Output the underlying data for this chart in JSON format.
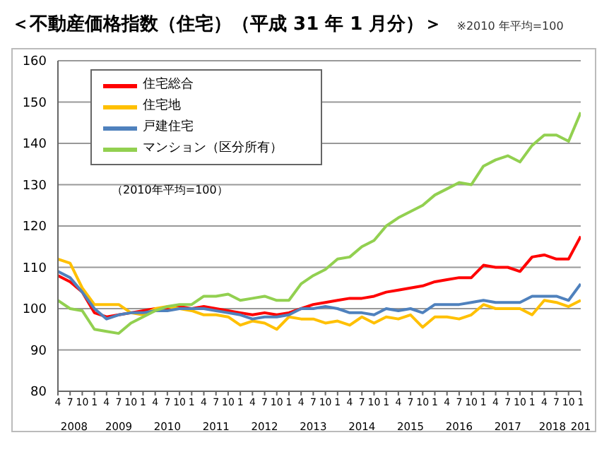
{
  "chart_data": {
    "type": "line",
    "title": "＜不動産価格指数（住宅）（平成 31 年 1 月分）＞",
    "annotations": [
      "※2010 年平均=100",
      "（2010年平均=100）"
    ],
    "x": [
      "2008-04",
      "2008-07",
      "2008-10",
      "2009-01",
      "2009-04",
      "2009-07",
      "2009-10",
      "2010-01",
      "2010-04",
      "2010-07",
      "2010-10",
      "2011-01",
      "2011-04",
      "2011-07",
      "2011-10",
      "2012-01",
      "2012-04",
      "2012-07",
      "2012-10",
      "2013-01",
      "2013-04",
      "2013-07",
      "2013-10",
      "2014-01",
      "2014-04",
      "2014-07",
      "2014-10",
      "2015-01",
      "2015-04",
      "2015-07",
      "2015-10",
      "2016-01",
      "2016-04",
      "2016-07",
      "2016-10",
      "2017-01",
      "2017-04",
      "2017-07",
      "2017-10",
      "2018-01",
      "2018-04",
      "2018-07",
      "2018-10",
      "2019-01"
    ],
    "series": [
      {
        "name": "住宅総合",
        "color": "#ff0000",
        "values": [
          108,
          106.5,
          104,
          99,
          98,
          98.5,
          99,
          99.5,
          100,
          100,
          100.5,
          100,
          100.5,
          100,
          99.5,
          99,
          98.5,
          99,
          98.5,
          99,
          100,
          101,
          101.5,
          102,
          102.5,
          102.5,
          103,
          104,
          104.5,
          105,
          105.5,
          106.5,
          107,
          107.5,
          107.5,
          110.5,
          110,
          110,
          109,
          112.5,
          113,
          112,
          112,
          117.5
        ]
      },
      {
        "name": "住宅地",
        "color": "#ffc000",
        "values": [
          112,
          111,
          105,
          101,
          101,
          101,
          99,
          98.5,
          100,
          100.5,
          100,
          99.5,
          98.5,
          98.5,
          98,
          96,
          97,
          96.5,
          95,
          98,
          97.5,
          97.5,
          96.5,
          97,
          96,
          98,
          96.5,
          98,
          97.5,
          98.5,
          95.5,
          98,
          98,
          97.5,
          98.5,
          101,
          100,
          100,
          100,
          98.5,
          102,
          101.5,
          100.5,
          102
        ]
      },
      {
        "name": "戸建住宅",
        "color": "#4f81bd",
        "values": [
          109,
          107.5,
          104,
          100,
          97.5,
          98.5,
          99,
          99,
          99.5,
          99.5,
          100,
          100,
          100,
          99.5,
          99,
          98.5,
          97.5,
          98,
          98,
          98.5,
          100,
          100,
          100.5,
          100,
          99,
          99,
          98.5,
          100,
          99.5,
          100,
          99,
          101,
          101,
          101,
          101.5,
          102,
          101.5,
          101.5,
          101.5,
          103,
          103,
          103,
          102,
          106
        ]
      },
      {
        "name": "マンション（区分所有）",
        "color": "#92d050",
        "values": [
          102,
          100,
          99.5,
          95,
          94.5,
          94,
          96.5,
          98,
          99.5,
          100.5,
          101,
          101,
          103,
          103,
          103.5,
          102,
          102.5,
          103,
          102,
          102,
          106,
          108,
          109.5,
          112,
          112.5,
          115,
          116.5,
          120,
          122,
          123.5,
          125,
          127.5,
          129,
          130.5,
          130,
          134.5,
          136,
          137,
          135.5,
          139.5,
          142,
          142,
          140.5,
          147.5
        ]
      }
    ],
    "xlim": [
      "2008-04",
      "2019-01"
    ],
    "xticks": [
      {
        "value": "2008-04",
        "label": "4"
      },
      {
        "value": "2008-07",
        "label": "7"
      },
      {
        "value": "2008-10",
        "label": "10"
      },
      {
        "value": "2009-01",
        "label": "1"
      },
      {
        "value": "2009-04",
        "label": "4"
      },
      {
        "value": "2009-07",
        "label": "7"
      },
      {
        "value": "2009-10",
        "label": "10"
      },
      {
        "value": "2010-01",
        "label": "1"
      },
      {
        "value": "2010-04",
        "label": "4"
      },
      {
        "value": "2010-07",
        "label": "7"
      },
      {
        "value": "2010-10",
        "label": "10"
      },
      {
        "value": "2011-01",
        "label": "1"
      },
      {
        "value": "2011-04",
        "label": "4"
      },
      {
        "value": "2011-07",
        "label": "7"
      },
      {
        "value": "2011-10",
        "label": "10"
      },
      {
        "value": "2012-01",
        "label": "1"
      },
      {
        "value": "2012-04",
        "label": "4"
      },
      {
        "value": "2012-07",
        "label": "7"
      },
      {
        "value": "2012-10",
        "label": "10"
      },
      {
        "value": "2013-01",
        "label": "1"
      },
      {
        "value": "2013-04",
        "label": "4"
      },
      {
        "value": "2013-07",
        "label": "7"
      },
      {
        "value": "2013-10",
        "label": "10"
      },
      {
        "value": "2014-01",
        "label": "1"
      },
      {
        "value": "2014-04",
        "label": "4"
      },
      {
        "value": "2014-07",
        "label": "7"
      },
      {
        "value": "2014-10",
        "label": "10"
      },
      {
        "value": "2015-01",
        "label": "1"
      },
      {
        "value": "2015-04",
        "label": "4"
      },
      {
        "value": "2015-07",
        "label": "7"
      },
      {
        "value": "2015-10",
        "label": "10"
      },
      {
        "value": "2016-01",
        "label": "1"
      },
      {
        "value": "2016-04",
        "label": "4"
      },
      {
        "value": "2016-07",
        "label": "7"
      },
      {
        "value": "2016-10",
        "label": "10"
      },
      {
        "value": "2017-01",
        "label": "1"
      },
      {
        "value": "2017-04",
        "label": "4"
      },
      {
        "value": "2017-07",
        "label": "7"
      },
      {
        "value": "2017-10",
        "label": "10"
      },
      {
        "value": "2018-01",
        "label": "1"
      },
      {
        "value": "2018-04",
        "label": "4"
      },
      {
        "value": "2018-07",
        "label": "7"
      },
      {
        "value": "2018-10",
        "label": "10"
      },
      {
        "value": "2019-01",
        "label": "1"
      }
    ],
    "x2lim": [
      "2008-04",
      "2019-01"
    ],
    "x2ticks": [
      {
        "value": "2008-08",
        "label": "2008"
      },
      {
        "value": "2009-07",
        "label": "2009"
      },
      {
        "value": "2010-07",
        "label": "2010"
      },
      {
        "value": "2011-07",
        "label": "2011"
      },
      {
        "value": "2012-07",
        "label": "2012"
      },
      {
        "value": "2013-07",
        "label": "2013"
      },
      {
        "value": "2014-07",
        "label": "2014"
      },
      {
        "value": "2015-07",
        "label": "2015"
      },
      {
        "value": "2016-07",
        "label": "2016"
      },
      {
        "value": "2017-07",
        "label": "2017"
      },
      {
        "value": "2018-06",
        "label": "2018"
      },
      {
        "value": "2019-01",
        "label": "201"
      }
    ],
    "ylim": [
      80,
      160
    ],
    "yticks": [
      80,
      90,
      100,
      110,
      120,
      130,
      140,
      150,
      160
    ],
    "grid": "y",
    "legend": "top left",
    "marker": "none",
    "line_style": "solid"
  }
}
